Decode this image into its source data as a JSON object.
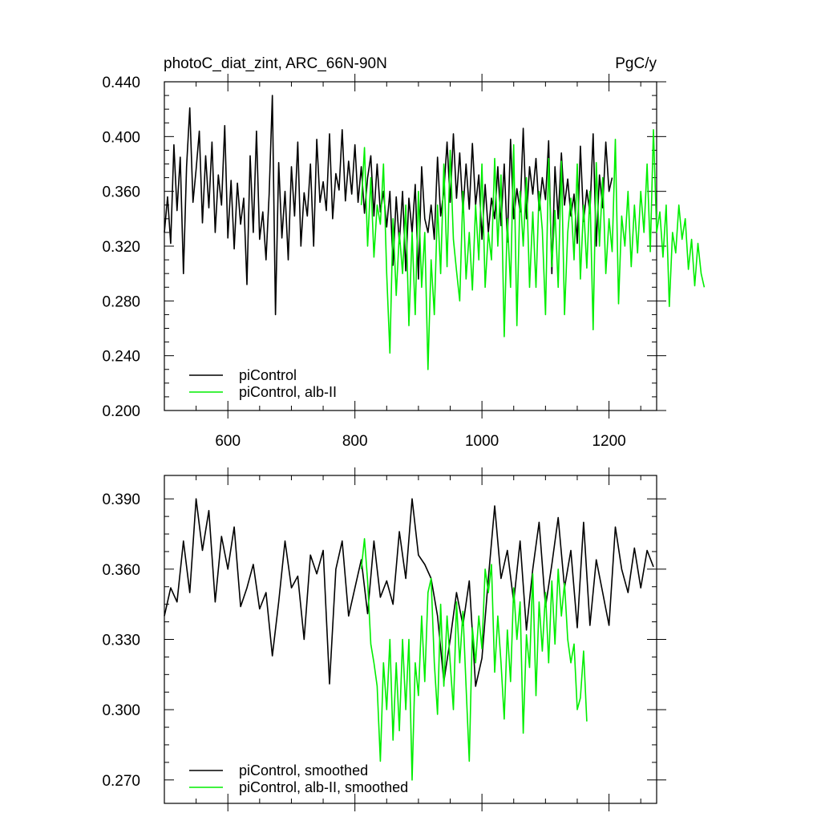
{
  "chart_data": [
    {
      "type": "line",
      "title": "photoC_diat_zint, ARC_66N-90N",
      "units": "PgC/y",
      "xlim": [
        500,
        1275
      ],
      "ylim": [
        0.2,
        0.44
      ],
      "x_ticks": [
        600,
        800,
        1000,
        1200
      ],
      "x_tick_labels": [
        "600",
        "800",
        "1000",
        "1200"
      ],
      "y_ticks": [
        0.2,
        0.24,
        0.28,
        0.32,
        0.36,
        0.4,
        0.44
      ],
      "y_tick_labels": [
        "0.200",
        "0.240",
        "0.280",
        "0.320",
        "0.360",
        "0.400",
        "0.440"
      ],
      "legend_position": "bottom-left",
      "series": [
        {
          "name": "piControl",
          "color": "#000000",
          "x_start": 500,
          "x_step": 5,
          "values": [
            0.33,
            0.356,
            0.322,
            0.394,
            0.346,
            0.385,
            0.3,
            0.378,
            0.421,
            0.352,
            0.376,
            0.404,
            0.337,
            0.386,
            0.348,
            0.396,
            0.33,
            0.372,
            0.35,
            0.408,
            0.326,
            0.368,
            0.318,
            0.366,
            0.336,
            0.355,
            0.292,
            0.386,
            0.33,
            0.404,
            0.325,
            0.345,
            0.31,
            0.358,
            0.43,
            0.27,
            0.381,
            0.326,
            0.36,
            0.31,
            0.378,
            0.342,
            0.396,
            0.32,
            0.359,
            0.342,
            0.38,
            0.32,
            0.398,
            0.352,
            0.367,
            0.346,
            0.402,
            0.34,
            0.373,
            0.361,
            0.405,
            0.353,
            0.382,
            0.358,
            0.394,
            0.352,
            0.378,
            0.344,
            0.37,
            0.386,
            0.342,
            0.38,
            0.345,
            0.36,
            0.334,
            0.36,
            0.306,
            0.356,
            0.322,
            0.36,
            0.302,
            0.355,
            0.33,
            0.365,
            0.296,
            0.378,
            0.34,
            0.33,
            0.35,
            0.325,
            0.385,
            0.342,
            0.36,
            0.396,
            0.352,
            0.402,
            0.355,
            0.388,
            0.345,
            0.38,
            0.347,
            0.395,
            0.35,
            0.372,
            0.325,
            0.365,
            0.33,
            0.355,
            0.34,
            0.378,
            0.335,
            0.38,
            0.323,
            0.398,
            0.34,
            0.362,
            0.345,
            0.406,
            0.34,
            0.378,
            0.358,
            0.384,
            0.346,
            0.37,
            0.354,
            0.397,
            0.3,
            0.378,
            0.34,
            0.388,
            0.35,
            0.369,
            0.342,
            0.358,
            0.322,
            0.393,
            0.338,
            0.361,
            0.344,
            0.402,
            0.32,
            0.372,
            0.348,
            0.396,
            0.36,
            0.37
          ]
        },
        {
          "name": "piControl, alb-II",
          "color": "#00ee00",
          "x_start": 810,
          "x_step": 5,
          "values": [
            0.35,
            0.392,
            0.32,
            0.37,
            0.312,
            0.35,
            0.336,
            0.38,
            0.3,
            0.242,
            0.34,
            0.284,
            0.33,
            0.3,
            0.35,
            0.262,
            0.33,
            0.27,
            0.36,
            0.29,
            0.33,
            0.23,
            0.31,
            0.27,
            0.35,
            0.3,
            0.38,
            0.305,
            0.39,
            0.325,
            0.302,
            0.28,
            0.36,
            0.296,
            0.33,
            0.288,
            0.35,
            0.31,
            0.38,
            0.29,
            0.33,
            0.31,
            0.384,
            0.32,
            0.372,
            0.254,
            0.34,
            0.29,
            0.394,
            0.262,
            0.36,
            0.32,
            0.37,
            0.29,
            0.345,
            0.29,
            0.36,
            0.332,
            0.27,
            0.384,
            0.305,
            0.346,
            0.29,
            0.382,
            0.27,
            0.33,
            0.355,
            0.31,
            0.38,
            0.296,
            0.35,
            0.304,
            0.36,
            0.259,
            0.381,
            0.32,
            0.37,
            0.3,
            0.34,
            0.316,
            0.398,
            0.278,
            0.342,
            0.32,
            0.36,
            0.305,
            0.35,
            0.315,
            0.36,
            0.33,
            0.38,
            0.316,
            0.405,
            0.33,
            0.345,
            0.312,
            0.35,
            0.276,
            0.33,
            0.315,
            0.35,
            0.325,
            0.34,
            0.303,
            0.325,
            0.291,
            0.322,
            0.3,
            0.29
          ]
        }
      ]
    },
    {
      "type": "line",
      "xlim": [
        500,
        1275
      ],
      "ylim": [
        0.26,
        0.4
      ],
      "x_ticks": [
        600,
        800,
        1000,
        1200
      ],
      "y_ticks": [
        0.27,
        0.3,
        0.33,
        0.36,
        0.39
      ],
      "y_tick_labels": [
        "0.270",
        "0.300",
        "0.330",
        "0.360",
        "0.390"
      ],
      "legend_position": "bottom-left",
      "series": [
        {
          "name": "piControl, smoothed",
          "color": "#000000",
          "x_start": 500,
          "x_step": 10,
          "values": [
            0.34,
            0.352,
            0.346,
            0.372,
            0.35,
            0.39,
            0.368,
            0.385,
            0.346,
            0.374,
            0.36,
            0.378,
            0.344,
            0.352,
            0.362,
            0.343,
            0.35,
            0.323,
            0.346,
            0.372,
            0.352,
            0.357,
            0.33,
            0.366,
            0.358,
            0.368,
            0.311,
            0.36,
            0.372,
            0.34,
            0.352,
            0.364,
            0.341,
            0.372,
            0.348,
            0.355,
            0.345,
            0.376,
            0.356,
            0.39,
            0.366,
            0.362,
            0.356,
            0.34,
            0.312,
            0.33,
            0.35,
            0.336,
            0.355,
            0.31,
            0.322,
            0.356,
            0.387,
            0.356,
            0.368,
            0.346,
            0.372,
            0.334,
            0.36,
            0.38,
            0.344,
            0.362,
            0.382,
            0.352,
            0.368,
            0.335,
            0.38,
            0.336,
            0.364,
            0.35,
            0.336,
            0.378,
            0.36,
            0.35,
            0.369,
            0.352,
            0.368,
            0.361
          ]
        },
        {
          "name": "piControl, alb-II, smoothed",
          "color": "#00ee00",
          "x_start": 810,
          "x_step": 5,
          "values": [
            0.36,
            0.373,
            0.355,
            0.328,
            0.32,
            0.31,
            0.278,
            0.32,
            0.3,
            0.33,
            0.287,
            0.32,
            0.291,
            0.33,
            0.3,
            0.33,
            0.27,
            0.32,
            0.306,
            0.34,
            0.312,
            0.35,
            0.356,
            0.32,
            0.298,
            0.345,
            0.31,
            0.34,
            0.32,
            0.3,
            0.346,
            0.32,
            0.342,
            0.31,
            0.278,
            0.335,
            0.32,
            0.34,
            0.326,
            0.36,
            0.35,
            0.362,
            0.316,
            0.34,
            0.32,
            0.296,
            0.334,
            0.312,
            0.352,
            0.33,
            0.346,
            0.29,
            0.332,
            0.318,
            0.358,
            0.306,
            0.346,
            0.325,
            0.35,
            0.32,
            0.355,
            0.328,
            0.36,
            0.34,
            0.354,
            0.33,
            0.32,
            0.328,
            0.3,
            0.305,
            0.325,
            0.295
          ]
        }
      ]
    }
  ]
}
